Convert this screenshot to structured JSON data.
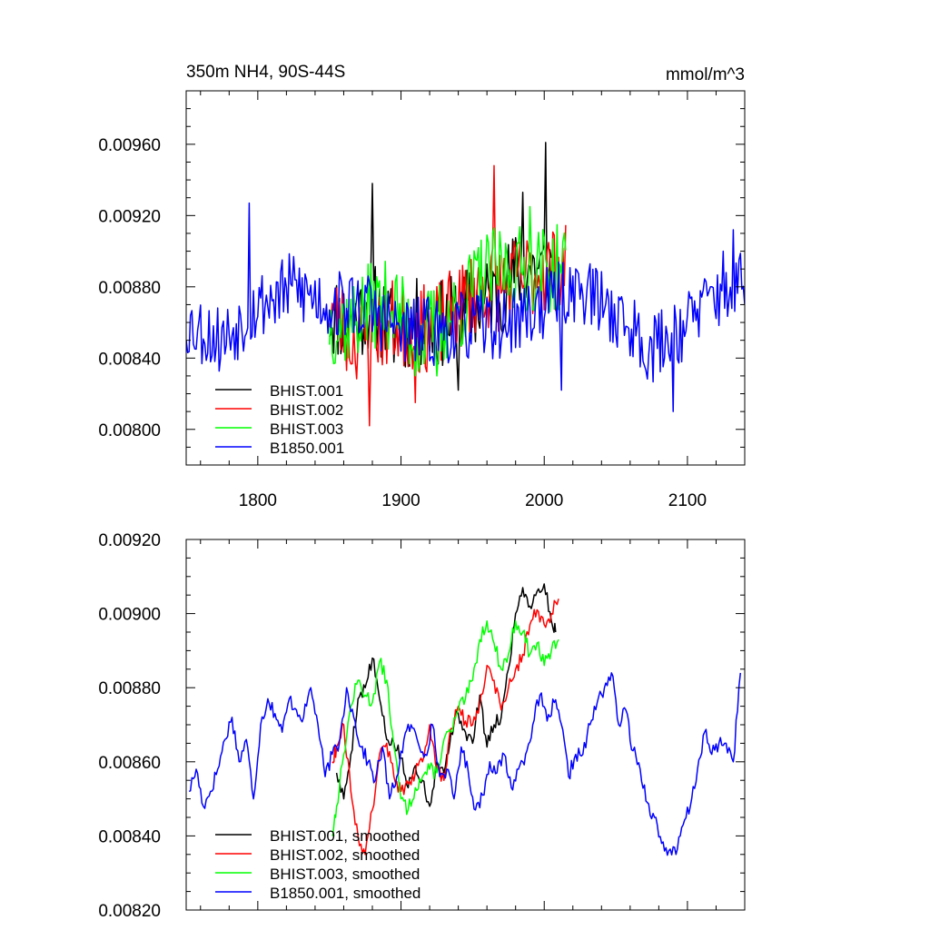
{
  "chart_data": [
    {
      "type": "line",
      "title": "350m NH4, 90S-44S",
      "units": "mmol/m^3",
      "xlim": [
        1750,
        2140
      ],
      "ylim": [
        0.0078,
        0.0099
      ],
      "x_ticks": [
        1800,
        1900,
        2000,
        2100
      ],
      "x_tick_labels": [
        "1800",
        "1900",
        "2000",
        "2100"
      ],
      "y_ticks": [
        0.008,
        0.0084,
        0.0088,
        0.0092,
        0.0096
      ],
      "y_tick_labels": [
        "0.00800",
        "0.00840",
        "0.00880",
        "0.00920",
        "0.00960"
      ],
      "legend_position": "lower-left",
      "series": [
        {
          "name": "BHIST.001",
          "color": "#000000",
          "x_start": 1850,
          "x_end": 2005,
          "anchor_x": [
            1850,
            1865,
            1880,
            1895,
            1910,
            1925,
            1940,
            1955,
            1970,
            1985,
            2000,
            2005
          ],
          "anchor_y": [
            0.00865,
            0.0086,
            0.0087,
            0.00855,
            0.0086,
            0.00858,
            0.00864,
            0.0087,
            0.00878,
            0.00892,
            0.0089,
            0.0089
          ],
          "noise": 0.00025,
          "spikes": [
            [
              1880,
              0.00938
            ],
            [
              2001,
              0.00961
            ],
            [
              1985,
              0.00933
            ],
            [
              1940,
              0.00822
            ]
          ],
          "seed": 11
        },
        {
          "name": "BHIST.002",
          "color": "#ff0000",
          "x_start": 1850,
          "x_end": 2015,
          "anchor_x": [
            1850,
            1865,
            1880,
            1895,
            1910,
            1925,
            1940,
            1955,
            1970,
            1985,
            2000,
            2015
          ],
          "anchor_y": [
            0.0087,
            0.0085,
            0.00855,
            0.0086,
            0.00855,
            0.00858,
            0.00868,
            0.0088,
            0.0088,
            0.00885,
            0.0089,
            0.0089
          ],
          "noise": 0.00025,
          "spikes": [
            [
              1965,
              0.00948
            ],
            [
              1878,
              0.00802
            ],
            [
              1910,
              0.00815
            ]
          ],
          "seed": 23
        },
        {
          "name": "BHIST.003",
          "color": "#00ff00",
          "x_start": 1850,
          "x_end": 2015,
          "anchor_x": [
            1850,
            1865,
            1880,
            1895,
            1910,
            1925,
            1940,
            1955,
            1970,
            1985,
            2000,
            2015
          ],
          "anchor_y": [
            0.0086,
            0.0086,
            0.0087,
            0.0087,
            0.0085,
            0.00858,
            0.00866,
            0.00885,
            0.0089,
            0.0089,
            0.0089,
            0.0089
          ],
          "noise": 0.00025,
          "spikes": [
            [
              1990,
              0.00925
            ],
            [
              1925,
              0.0083
            ]
          ],
          "seed": 37
        },
        {
          "name": "B1850.001",
          "color": "#0000ff",
          "x_start": 1750,
          "x_end": 2140,
          "anchor_x": [
            1750,
            1775,
            1800,
            1825,
            1850,
            1875,
            1900,
            1925,
            1950,
            1975,
            2000,
            2025,
            2050,
            2075,
            2100,
            2125,
            2140
          ],
          "anchor_y": [
            0.0086,
            0.0085,
            0.0087,
            0.0088,
            0.0087,
            0.0087,
            0.00855,
            0.00855,
            0.00858,
            0.0086,
            0.0087,
            0.0088,
            0.00865,
            0.00845,
            0.0086,
            0.0088,
            0.0088
          ],
          "noise": 0.0002,
          "spikes": [
            [
              1794,
              0.00927
            ],
            [
              2012,
              0.00822
            ],
            [
              2090,
              0.0081
            ],
            [
              2132,
              0.00912
            ]
          ],
          "seed": 53
        }
      ]
    },
    {
      "type": "line",
      "title": "",
      "xlim": [
        1750,
        2140
      ],
      "ylim": [
        0.0082,
        0.0092
      ],
      "x_ticks": [
        1800,
        1900,
        2000,
        2100
      ],
      "y_ticks": [
        0.0082,
        0.0084,
        0.0086,
        0.0088,
        0.009,
        0.0092
      ],
      "y_tick_labels": [
        "0.00820",
        "0.00840",
        "0.00860",
        "0.00880",
        "0.00900",
        "0.00920"
      ],
      "legend_position": "lower-left",
      "series": [
        {
          "name": "BHIST.001, smoothed",
          "color": "#000000",
          "x": [
            1855,
            1860,
            1865,
            1870,
            1875,
            1880,
            1885,
            1890,
            1895,
            1900,
            1905,
            1910,
            1915,
            1920,
            1925,
            1930,
            1935,
            1940,
            1945,
            1950,
            1955,
            1960,
            1965,
            1970,
            1975,
            1980,
            1985,
            1990,
            1995,
            2000,
            2005,
            2008
          ],
          "y": [
            0.00857,
            0.0085,
            0.00862,
            0.00877,
            0.0088,
            0.00888,
            0.00877,
            0.00866,
            0.00865,
            0.00861,
            0.00853,
            0.00859,
            0.00855,
            0.00848,
            0.0086,
            0.00857,
            0.00868,
            0.00873,
            0.00868,
            0.00865,
            0.00878,
            0.00864,
            0.0087,
            0.00872,
            0.00885,
            0.009,
            0.00907,
            0.00902,
            0.00906,
            0.00908,
            0.00898,
            0.00895
          ],
          "noise": 2e-05,
          "seed": 5
        },
        {
          "name": "BHIST.002, smoothed",
          "color": "#ff0000",
          "x": [
            1852,
            1855,
            1860,
            1865,
            1870,
            1875,
            1880,
            1885,
            1890,
            1895,
            1900,
            1905,
            1910,
            1915,
            1920,
            1925,
            1930,
            1935,
            1940,
            1945,
            1950,
            1955,
            1960,
            1965,
            1970,
            1975,
            1980,
            1985,
            1990,
            1995,
            2000,
            2005,
            2010
          ],
          "y": [
            0.0086,
            0.00864,
            0.0087,
            0.00852,
            0.0084,
            0.00835,
            0.00847,
            0.00862,
            0.00865,
            0.00856,
            0.00852,
            0.00854,
            0.00857,
            0.0086,
            0.0087,
            0.00858,
            0.00855,
            0.00869,
            0.00875,
            0.00871,
            0.0087,
            0.00876,
            0.00886,
            0.00882,
            0.00874,
            0.0088,
            0.00885,
            0.00889,
            0.00897,
            0.00901,
            0.00897,
            0.009,
            0.00904
          ],
          "noise": 2e-05,
          "seed": 9
        },
        {
          "name": "BHIST.003, smoothed",
          "color": "#00ff00",
          "x": [
            1852,
            1855,
            1860,
            1865,
            1870,
            1875,
            1880,
            1885,
            1890,
            1895,
            1900,
            1905,
            1910,
            1915,
            1920,
            1925,
            1930,
            1935,
            1940,
            1945,
            1950,
            1955,
            1960,
            1965,
            1970,
            1975,
            1980,
            1985,
            1990,
            1995,
            2000,
            2005,
            2010
          ],
          "y": [
            0.0084,
            0.00848,
            0.00862,
            0.00875,
            0.00882,
            0.00878,
            0.00876,
            0.00887,
            0.00882,
            0.00864,
            0.0085,
            0.00847,
            0.00853,
            0.00856,
            0.00858,
            0.00857,
            0.00866,
            0.00868,
            0.00874,
            0.00877,
            0.00882,
            0.00893,
            0.00898,
            0.00892,
            0.00885,
            0.00889,
            0.00898,
            0.00895,
            0.00889,
            0.00892,
            0.00886,
            0.0089,
            0.00893
          ],
          "noise": 2e-05,
          "seed": 13
        },
        {
          "name": "B1850.001, smoothed",
          "color": "#0000ff",
          "x": [
            1752,
            1757,
            1762,
            1767,
            1772,
            1777,
            1782,
            1787,
            1792,
            1797,
            1802,
            1807,
            1812,
            1817,
            1822,
            1827,
            1832,
            1837,
            1842,
            1847,
            1852,
            1857,
            1862,
            1867,
            1872,
            1877,
            1882,
            1887,
            1892,
            1897,
            1902,
            1907,
            1912,
            1917,
            1922,
            1927,
            1932,
            1937,
            1942,
            1947,
            1952,
            1957,
            1962,
            1967,
            1972,
            1977,
            1982,
            1987,
            1992,
            1997,
            2002,
            2007,
            2012,
            2017,
            2022,
            2027,
            2032,
            2037,
            2042,
            2047,
            2052,
            2057,
            2062,
            2067,
            2072,
            2077,
            2082,
            2087,
            2092,
            2097,
            2102,
            2107,
            2112,
            2117,
            2122,
            2127,
            2132,
            2137
          ],
          "y": [
            0.00852,
            0.00858,
            0.00848,
            0.00852,
            0.00858,
            0.00866,
            0.00872,
            0.0086,
            0.00866,
            0.0085,
            0.0087,
            0.00877,
            0.00873,
            0.00868,
            0.00877,
            0.00874,
            0.00872,
            0.0088,
            0.0087,
            0.00856,
            0.00862,
            0.00865,
            0.0088,
            0.00872,
            0.00864,
            0.0086,
            0.00855,
            0.00864,
            0.0085,
            0.00856,
            0.00866,
            0.0087,
            0.00865,
            0.00862,
            0.0087,
            0.00856,
            0.00858,
            0.0085,
            0.00864,
            0.00857,
            0.00847,
            0.00851,
            0.0086,
            0.00857,
            0.00862,
            0.00853,
            0.00858,
            0.00862,
            0.0087,
            0.00878,
            0.00871,
            0.00876,
            0.0087,
            0.00856,
            0.00862,
            0.00862,
            0.0087,
            0.00876,
            0.0088,
            0.00884,
            0.0087,
            0.00874,
            0.00863,
            0.00858,
            0.00849,
            0.00845,
            0.00838,
            0.00836,
            0.00835,
            0.00843,
            0.00848,
            0.00858,
            0.00868,
            0.00862,
            0.00865,
            0.00865,
            0.0086,
            0.00884
          ],
          "noise": 2e-05,
          "seed": 17
        }
      ]
    }
  ]
}
